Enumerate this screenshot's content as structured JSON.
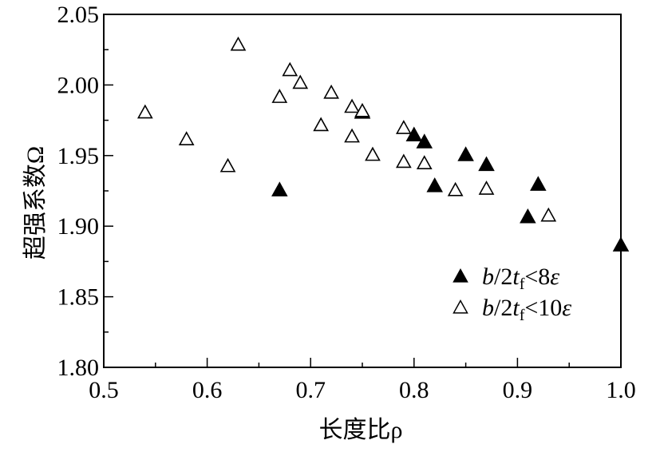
{
  "chart_data": {
    "type": "scatter",
    "title": "",
    "xlabel": "长度比ρ",
    "ylabel": "超强系数Ω",
    "xlim": [
      0.5,
      1.0
    ],
    "ylim": [
      1.8,
      2.05
    ],
    "x_ticks": [
      "0.5",
      "0.6",
      "0.7",
      "0.8",
      "0.9",
      "1.0"
    ],
    "y_ticks": [
      "1.80",
      "1.85",
      "1.90",
      "1.95",
      "2.00",
      "2.05"
    ],
    "grid": false,
    "legend_position": "bottom-right",
    "series": [
      {
        "name": "b/2tf<8ε",
        "marker": "filled-triangle",
        "color": "#000000",
        "points": [
          {
            "x": 0.67,
            "y": 1.925
          },
          {
            "x": 0.75,
            "y": 1.98
          },
          {
            "x": 0.8,
            "y": 1.964
          },
          {
            "x": 0.81,
            "y": 1.959
          },
          {
            "x": 0.82,
            "y": 1.928
          },
          {
            "x": 0.85,
            "y": 1.95
          },
          {
            "x": 0.87,
            "y": 1.943
          },
          {
            "x": 0.91,
            "y": 1.906
          },
          {
            "x": 0.92,
            "y": 1.929
          },
          {
            "x": 1.0,
            "y": 1.886
          }
        ]
      },
      {
        "name": "b/2tf<10ε",
        "marker": "open-triangle",
        "color": "#000000",
        "points": [
          {
            "x": 0.54,
            "y": 1.98
          },
          {
            "x": 0.58,
            "y": 1.961
          },
          {
            "x": 0.62,
            "y": 1.942
          },
          {
            "x": 0.63,
            "y": 2.028
          },
          {
            "x": 0.67,
            "y": 1.991
          },
          {
            "x": 0.68,
            "y": 2.01
          },
          {
            "x": 0.69,
            "y": 2.001
          },
          {
            "x": 0.71,
            "y": 1.971
          },
          {
            "x": 0.72,
            "y": 1.994
          },
          {
            "x": 0.74,
            "y": 1.984
          },
          {
            "x": 0.74,
            "y": 1.963
          },
          {
            "x": 0.75,
            "y": 1.981
          },
          {
            "x": 0.76,
            "y": 1.95
          },
          {
            "x": 0.79,
            "y": 1.969
          },
          {
            "x": 0.79,
            "y": 1.945
          },
          {
            "x": 0.81,
            "y": 1.944
          },
          {
            "x": 0.84,
            "y": 1.925
          },
          {
            "x": 0.87,
            "y": 1.926
          },
          {
            "x": 0.93,
            "y": 1.907
          }
        ]
      }
    ],
    "legend": {
      "entries": [
        {
          "italic_part": "b",
          "mid": "/2",
          "t": "t",
          "sub": "f",
          "cmp": "<",
          "num": "8",
          "eps": "ε"
        },
        {
          "italic_part": "b",
          "mid": "/2",
          "t": "t",
          "sub": "f",
          "cmp": "<",
          "num": "10",
          "eps": "ε"
        }
      ]
    }
  }
}
